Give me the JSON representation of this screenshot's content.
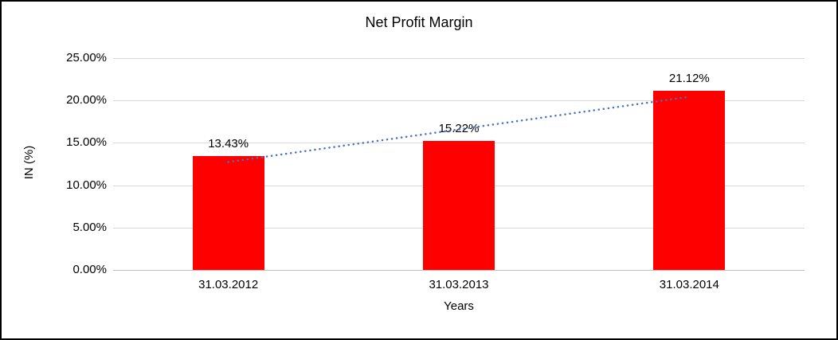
{
  "chart_data": {
    "type": "bar",
    "title": "Net Profit Margin",
    "xlabel": "Years",
    "ylabel": "IN (%)",
    "categories": [
      "31.03.2012",
      "31.03.2013",
      "31.03.2014"
    ],
    "values": [
      13.43,
      15.22,
      21.12
    ],
    "value_labels": [
      "13.43%",
      "15.22%",
      "21.12%"
    ],
    "ylim": [
      0,
      25
    ],
    "yticks": [
      {
        "value": 0,
        "label": "0.00%"
      },
      {
        "value": 5,
        "label": "5.00%"
      },
      {
        "value": 10,
        "label": "10.00%"
      },
      {
        "value": 15,
        "label": "15.00%"
      },
      {
        "value": 20,
        "label": "20.00%"
      },
      {
        "value": 25,
        "label": "25.00%"
      }
    ],
    "grid": true,
    "legend": "none",
    "trendline": {
      "type": "linear",
      "style": "dotted"
    },
    "colors": {
      "bar": "#FF0000",
      "trendline": "#4472C4",
      "gridline": "#D9D9D9",
      "axis_line": "#BFBFBF",
      "text": "#000000",
      "background": "#FFFFFF",
      "border": "#000000"
    }
  }
}
